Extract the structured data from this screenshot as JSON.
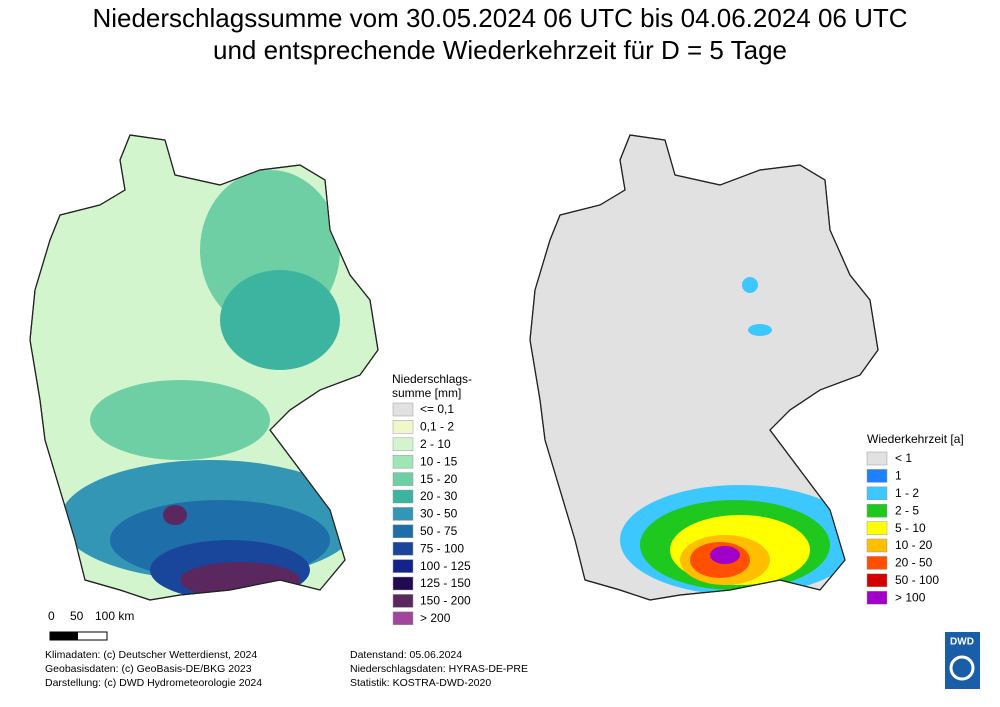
{
  "title": [
    "Niederschlagssumme vom 30.05.2024 06 UTC bis 04.06.2024 06 UTC",
    "und entsprechende Wiederkehrzeit für D = 5 Tage"
  ],
  "precip_legend": {
    "title": [
      "Niederschlags-",
      "summe [mm]"
    ],
    "items": [
      {
        "label": "<= 0,1",
        "color": "#e1e1e1"
      },
      {
        "label": "0,1 - 2",
        "color": "#f0f7c8"
      },
      {
        "label": "2 - 10",
        "color": "#d2f5cd"
      },
      {
        "label": "10 - 15",
        "color": "#a0e6b4"
      },
      {
        "label": "15 - 20",
        "color": "#6ecfa5"
      },
      {
        "label": "20 - 30",
        "color": "#3cb4a0"
      },
      {
        "label": "30 - 50",
        "color": "#3296b4"
      },
      {
        "label": "50 - 75",
        "color": "#1e6eaa"
      },
      {
        "label": "75 - 100",
        "color": "#19469b"
      },
      {
        "label": "100 - 125",
        "color": "#14238c"
      },
      {
        "label": "125 - 150",
        "color": "#230a50"
      },
      {
        "label": "150 - 200",
        "color": "#5a285f"
      },
      {
        "label": "> 200",
        "color": "#a0469b"
      }
    ]
  },
  "return_legend": {
    "title": "Wiederkehrzeit [a]",
    "items": [
      {
        "label": "< 1",
        "color": "#e1e1e1"
      },
      {
        "label": "1",
        "color": "#1e82ff"
      },
      {
        "label": "1 - 2",
        "color": "#3cc8ff"
      },
      {
        "label": "2 - 5",
        "color": "#1ec81e"
      },
      {
        "label": "5 - 10",
        "color": "#ffff00"
      },
      {
        "label": "10 - 20",
        "color": "#ffbe00"
      },
      {
        "label": "20 - 50",
        "color": "#ff5000"
      },
      {
        "label": "50 - 100",
        "color": "#d20000"
      },
      {
        "label": "> 100",
        "color": "#a000c8"
      }
    ]
  },
  "scale": {
    "labels": [
      "0",
      "50",
      "100 km"
    ]
  },
  "credits_left": [
    "Klimadaten: (c) Deutscher Wetterdienst, 2024",
    "Geobasisdaten: (c) GeoBasis-DE/BKG 2023",
    "Darstellung: (c) DWD Hydrometeorologie 2024"
  ],
  "credits_right": [
    "Datenstand: 05.06.2024",
    "Niederschlagsdaten: HYRAS-DE-PRE",
    "Statistik: KOSTRA-DWD-2020"
  ],
  "logo": "DWD"
}
